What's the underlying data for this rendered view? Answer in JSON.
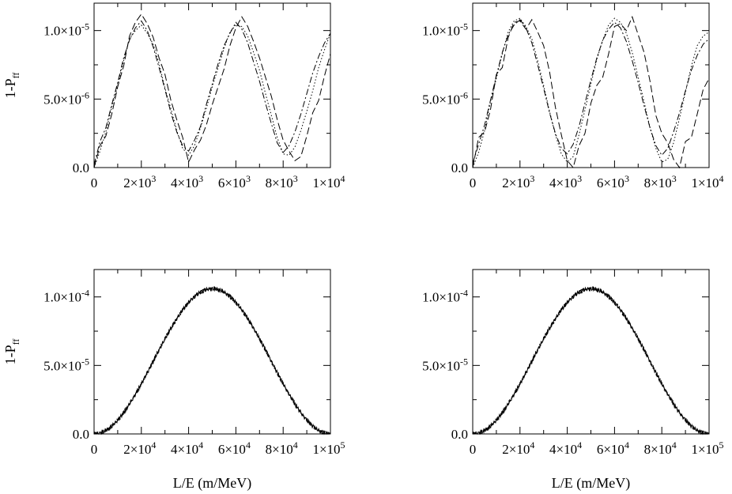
{
  "chart_data": [
    {
      "id": "top-left",
      "type": "line",
      "ylabel_main": "1-P",
      "ylabel_sub": "ff",
      "xlabel": "",
      "xlim": [
        0,
        10000
      ],
      "ylim": [
        0,
        1.2e-05
      ],
      "xticks": [
        {
          "value": 0,
          "mant": "0",
          "exp": ""
        },
        {
          "value": 2000,
          "mant": "2×10",
          "exp": "3"
        },
        {
          "value": 4000,
          "mant": "4×10",
          "exp": "3"
        },
        {
          "value": 6000,
          "mant": "6×10",
          "exp": "3"
        },
        {
          "value": 8000,
          "mant": "8×10",
          "exp": "3"
        },
        {
          "value": 10000,
          "mant": "1×10",
          "exp": "4"
        }
      ],
      "yticks": [
        {
          "value": 0,
          "mant": "0.0",
          "exp": ""
        },
        {
          "value": 5e-06,
          "mant": "5.0×10",
          "exp": "-6"
        },
        {
          "value": 1e-05,
          "mant": "1.0×10",
          "exp": "-5"
        }
      ],
      "series": [
        {
          "style": "dashed",
          "x": [
            0,
            250,
            500,
            750,
            1000,
            1250,
            1500,
            1750,
            2000,
            2250,
            2500,
            2750,
            3000,
            3250,
            3500,
            3750,
            4000,
            4250,
            4500,
            4750,
            5000,
            5250,
            5500,
            5750,
            6000,
            6250,
            6500,
            6750,
            7000,
            7250,
            7500,
            7750,
            8000,
            8250,
            8500,
            8750,
            9000,
            9250,
            9500,
            9750,
            10000
          ],
          "y": [
            0,
            1.6e-06,
            2.3e-06,
            3.9e-06,
            5.9e-06,
            7.4e-06,
            9.6e-06,
            1.06e-05,
            1.12e-05,
            1.05e-05,
            9.5e-06,
            8e-06,
            6.8e-06,
            4.9e-06,
            3.5e-06,
            2.2e-06,
            4e-07,
            1.3e-06,
            2e-06,
            3.1e-06,
            4.6e-06,
            5.9e-06,
            7.2e-06,
            8.9e-06,
            1.02e-05,
            1.1e-05,
            1.03e-05,
            9.2e-06,
            8e-06,
            6.6e-06,
            5.2e-06,
            3.5e-06,
            2e-06,
            1.2e-06,
            5e-07,
            8e-07,
            2.3e-06,
            4e-06,
            4.9e-06,
            6.7e-06,
            8.3e-06
          ]
        },
        {
          "style": "dotted",
          "x": [
            0,
            250,
            500,
            750,
            1000,
            1250,
            1500,
            1750,
            2000,
            2250,
            2500,
            2750,
            3000,
            3250,
            3500,
            3750,
            4000,
            4250,
            4500,
            4750,
            5000,
            5250,
            5500,
            5750,
            6000,
            6250,
            6500,
            6750,
            7000,
            7250,
            7500,
            7750,
            8000,
            8250,
            8500,
            8750,
            9000,
            9250,
            9500,
            9750,
            10000
          ],
          "y": [
            0,
            1.2e-06,
            2.6e-06,
            4.4e-06,
            6e-06,
            7.8e-06,
            9.4e-06,
            1e-05,
            1.04e-05,
            9.8e-06,
            9e-06,
            7.6e-06,
            5.8e-06,
            4.3e-06,
            2.7e-06,
            1.4e-06,
            9e-07,
            1.6e-06,
            2.9e-06,
            4.3e-06,
            5.9e-06,
            7.3e-06,
            8.7e-06,
            9.9e-06,
            1.04e-05,
            1.03e-05,
            9.6e-06,
            8.4e-06,
            7.1e-06,
            5.4e-06,
            3.8e-06,
            2.2e-06,
            1e-06,
            9e-07,
            1.5e-06,
            2.7e-06,
            4.1e-06,
            5.6e-06,
            7.3e-06,
            8.6e-06,
            9.8e-06
          ]
        },
        {
          "style": "dashdot",
          "x": [
            0,
            250,
            500,
            750,
            1000,
            1250,
            1500,
            1750,
            2000,
            2250,
            2500,
            2750,
            3000,
            3250,
            3500,
            3750,
            4000,
            4250,
            4500,
            4750,
            5000,
            5250,
            5500,
            5750,
            6000,
            6250,
            6500,
            6750,
            7000,
            7250,
            7500,
            7750,
            8000,
            8250,
            8500,
            8750,
            9000,
            9250,
            9500,
            9750,
            10000
          ],
          "y": [
            2e-07,
            1.9e-06,
            2.9e-06,
            4.6e-06,
            6.2e-06,
            8e-06,
            9.3e-06,
            1.02e-05,
            1.07e-05,
            1e-05,
            8.8e-06,
            7.3e-06,
            5.7e-06,
            4e-06,
            2.6e-06,
            1.6e-06,
            1.2e-06,
            2e-06,
            3e-06,
            4.6e-06,
            6.1e-06,
            7.6e-06,
            8.9e-06,
            9.8e-06,
            1.06e-05,
            1.01e-05,
            9.1e-06,
            7.7e-06,
            6.3e-06,
            4.7e-06,
            3.2e-06,
            1.8e-06,
            1.1e-06,
            1.6e-06,
            2.6e-06,
            3.9e-06,
            5.4e-06,
            6.9e-06,
            8.1e-06,
            9.1e-06,
            9.8e-06
          ]
        }
      ]
    },
    {
      "id": "top-right",
      "type": "line",
      "ylabel_main": "",
      "ylabel_sub": "",
      "xlabel": "",
      "xlim": [
        0,
        10000
      ],
      "ylim": [
        0,
        1.2e-05
      ],
      "xticks": [
        {
          "value": 0,
          "mant": "0",
          "exp": ""
        },
        {
          "value": 2000,
          "mant": "2×10",
          "exp": "3"
        },
        {
          "value": 4000,
          "mant": "4×10",
          "exp": "3"
        },
        {
          "value": 6000,
          "mant": "6×10",
          "exp": "3"
        },
        {
          "value": 8000,
          "mant": "8×10",
          "exp": "3"
        },
        {
          "value": 10000,
          "mant": "1×10",
          "exp": "4"
        }
      ],
      "yticks": [
        {
          "value": 0,
          "mant": "0.0",
          "exp": ""
        },
        {
          "value": 5e-06,
          "mant": "5.0×10",
          "exp": "-6"
        },
        {
          "value": 1e-05,
          "mant": "1.0×10",
          "exp": "-5"
        }
      ],
      "series": [
        {
          "style": "dashed",
          "x": [
            0,
            250,
            500,
            750,
            1000,
            1250,
            1500,
            1750,
            2000,
            2250,
            2500,
            2750,
            3000,
            3250,
            3500,
            3750,
            4000,
            4250,
            4500,
            4750,
            5000,
            5250,
            5500,
            5750,
            6000,
            6250,
            6500,
            6750,
            7000,
            7250,
            7500,
            7750,
            8000,
            8250,
            8500,
            8750,
            9000,
            9250,
            9500,
            9750,
            10000
          ],
          "y": [
            0,
            2.2e-06,
            2.6e-06,
            4.2e-06,
            6.8e-06,
            7.3e-06,
            9.5e-06,
            1.06e-05,
            1.07e-05,
            1.01e-05,
            1.08e-05,
            9.9e-06,
            8.9e-06,
            7e-06,
            4.4e-06,
            2.4e-06,
            5e-07,
            0,
            1.6e-06,
            2.5e-06,
            4.7e-06,
            6e-06,
            6.6e-06,
            8.3e-06,
            1.03e-05,
            1.05e-05,
            1e-05,
            1.1e-05,
            9.7e-06,
            8.4e-06,
            6.3e-06,
            3.8e-06,
            2.5e-06,
            1.8e-06,
            6e-07,
            0,
            1.9e-06,
            2.2e-06,
            3.9e-06,
            5.7e-06,
            6.5e-06
          ]
        },
        {
          "style": "dotted",
          "x": [
            0,
            250,
            500,
            750,
            1000,
            1250,
            1500,
            1750,
            2000,
            2250,
            2500,
            2750,
            3000,
            3250,
            3500,
            3750,
            4000,
            4250,
            4500,
            4750,
            5000,
            5250,
            5500,
            5750,
            6000,
            6250,
            6500,
            6750,
            7000,
            7250,
            7500,
            7750,
            8000,
            8250,
            8500,
            8750,
            9000,
            9250,
            9500,
            9750,
            10000
          ],
          "y": [
            0,
            1.1e-06,
            2.7e-06,
            4.8e-06,
            6.5e-06,
            8.3e-06,
            9.9e-06,
            1.07e-05,
            1.09e-05,
            1.03e-05,
            9.4e-06,
            7.8e-06,
            6e-06,
            4.1e-06,
            2.4e-06,
            1e-06,
            4e-07,
            8e-07,
            2.4e-06,
            4.2e-06,
            6.1e-06,
            7.9e-06,
            9.3e-06,
            1.04e-05,
            1.09e-05,
            1.06e-05,
            9.8e-06,
            8.4e-06,
            6.6e-06,
            4.8e-06,
            2.9e-06,
            1.4e-06,
            4e-07,
            6e-07,
            1.8e-06,
            3.6e-06,
            5.5e-06,
            7.4e-06,
            8.9e-06,
            9.6e-06,
            9.9e-06
          ]
        },
        {
          "style": "dashdot",
          "x": [
            0,
            250,
            500,
            750,
            1000,
            1250,
            1500,
            1750,
            2000,
            2250,
            2500,
            2750,
            3000,
            3250,
            3500,
            3750,
            4000,
            4250,
            4500,
            4750,
            5000,
            5250,
            5500,
            5750,
            6000,
            6250,
            6500,
            6750,
            7000,
            7250,
            7500,
            7750,
            8000,
            8250,
            8500,
            8750,
            9000,
            9250,
            9500,
            9750,
            10000
          ],
          "y": [
            3e-07,
            1.7e-06,
            3.1e-06,
            4.9e-06,
            6.7e-06,
            8.4e-06,
            9.7e-06,
            1.04e-05,
            1.08e-05,
            1.02e-05,
            9.1e-06,
            7.5e-06,
            5.8e-06,
            4e-06,
            2.5e-06,
            1.4e-06,
            1e-06,
            1.7e-06,
            3e-06,
            4.7e-06,
            6.4e-06,
            8e-06,
            9.3e-06,
            1.01e-05,
            1.06e-05,
            1.02e-05,
            9.2e-06,
            7.8e-06,
            6.2e-06,
            4.5e-06,
            2.9e-06,
            1.6e-06,
            9e-07,
            1.4e-06,
            2.6e-06,
            4e-06,
            5.6e-06,
            7.1e-06,
            8.2e-06,
            9e-06,
            9.4e-06
          ]
        }
      ]
    },
    {
      "id": "bottom-left",
      "type": "line",
      "ylabel_main": "1-P",
      "ylabel_sub": "ff",
      "xlabel": "L/E (m/MeV)",
      "xlim": [
        0,
        100000
      ],
      "ylim": [
        0,
        0.00012
      ],
      "peak": 0.000106,
      "xticks": [
        {
          "value": 0,
          "mant": "0",
          "exp": ""
        },
        {
          "value": 20000,
          "mant": "2×10",
          "exp": "4"
        },
        {
          "value": 40000,
          "mant": "4×10",
          "exp": "4"
        },
        {
          "value": 60000,
          "mant": "6×10",
          "exp": "4"
        },
        {
          "value": 80000,
          "mant": "8×10",
          "exp": "4"
        },
        {
          "value": 100000,
          "mant": "1×10",
          "exp": "5"
        }
      ],
      "yticks": [
        {
          "value": 0,
          "mant": "0.0",
          "exp": ""
        },
        {
          "value": 5e-05,
          "mant": "5.0×10",
          "exp": "-5"
        },
        {
          "value": 0.0001,
          "mant": "1.0×10",
          "exp": "-4"
        }
      ],
      "series": [
        {
          "style": "solid"
        },
        {
          "style": "dotted"
        },
        {
          "style": "dashed"
        }
      ]
    },
    {
      "id": "bottom-right",
      "type": "line",
      "ylabel_main": "",
      "ylabel_sub": "",
      "xlabel": "L/E (m/MeV)",
      "xlim": [
        0,
        100000
      ],
      "ylim": [
        0,
        0.00012
      ],
      "peak": 0.000106,
      "xticks": [
        {
          "value": 0,
          "mant": "0",
          "exp": ""
        },
        {
          "value": 20000,
          "mant": "2×10",
          "exp": "4"
        },
        {
          "value": 40000,
          "mant": "4×10",
          "exp": "4"
        },
        {
          "value": 60000,
          "mant": "6×10",
          "exp": "4"
        },
        {
          "value": 80000,
          "mant": "8×10",
          "exp": "4"
        },
        {
          "value": 100000,
          "mant": "1×10",
          "exp": "5"
        }
      ],
      "yticks": [
        {
          "value": 0,
          "mant": "0.0",
          "exp": ""
        },
        {
          "value": 5e-05,
          "mant": "5.0×10",
          "exp": "-5"
        },
        {
          "value": 0.0001,
          "mant": "1.0×10",
          "exp": "-4"
        }
      ],
      "series": [
        {
          "style": "solid"
        },
        {
          "style": "dotted"
        },
        {
          "style": "dashed"
        }
      ]
    }
  ]
}
